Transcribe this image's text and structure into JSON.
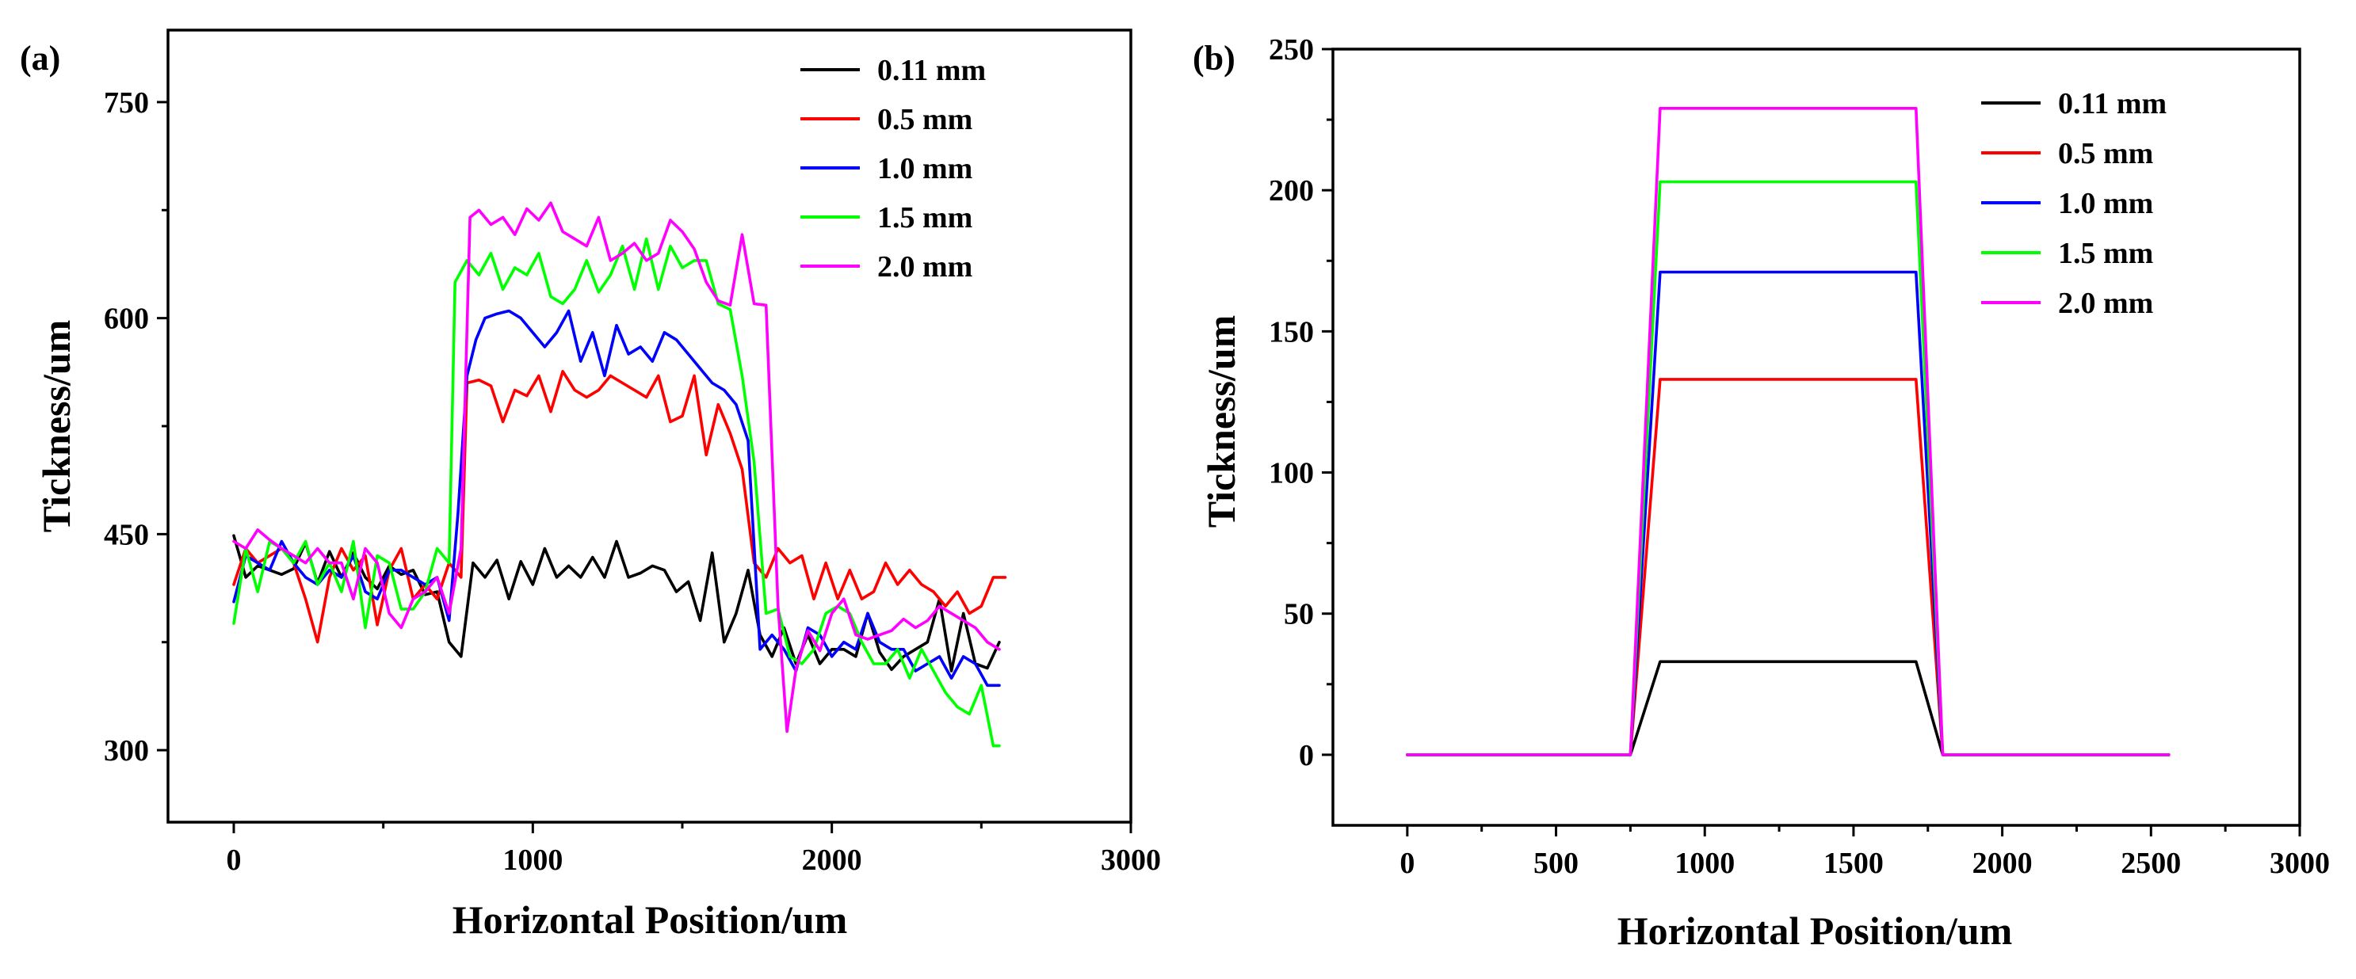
{
  "chart_data": [
    {
      "panel": "(a)",
      "type": "line",
      "xlabel": "Horizontal Position/um",
      "ylabel": "Tickness/um",
      "xlim": [
        -220,
        3000
      ],
      "ylim": [
        250,
        800
      ],
      "xticks": [
        0,
        1000,
        2000,
        3000
      ],
      "yticks": [
        300,
        450,
        600,
        750
      ],
      "xtick_labels": [
        "0",
        "1000",
        "2000",
        "3000"
      ],
      "ytick_labels": [
        "300",
        "450",
        "600",
        "750"
      ],
      "legend_position": "top-right",
      "series": [
        {
          "name": "0.11 mm",
          "color": "#000000",
          "x": [
            0,
            40,
            80,
            120,
            160,
            200,
            240,
            280,
            320,
            360,
            400,
            440,
            480,
            520,
            560,
            600,
            640,
            680,
            720,
            760,
            800,
            840,
            880,
            920,
            960,
            1000,
            1040,
            1080,
            1120,
            1160,
            1200,
            1240,
            1280,
            1320,
            1360,
            1400,
            1440,
            1480,
            1520,
            1560,
            1600,
            1640,
            1680,
            1720,
            1760,
            1800,
            1840,
            1880,
            1920,
            1960,
            2000,
            2040,
            2080,
            2120,
            2160,
            2200,
            2240,
            2280,
            2320,
            2360,
            2400,
            2440,
            2480,
            2520,
            2560
          ],
          "y": [
            449,
            420,
            428,
            425,
            422,
            426,
            444,
            416,
            438,
            420,
            437,
            420,
            412,
            428,
            422,
            425,
            408,
            410,
            375,
            365,
            430,
            420,
            432,
            405,
            431,
            415,
            440,
            420,
            428,
            420,
            434,
            420,
            445,
            420,
            423,
            428,
            425,
            410,
            417,
            390,
            437,
            375,
            395,
            425,
            380,
            365,
            385,
            360,
            380,
            360,
            370,
            370,
            365,
            395,
            368,
            356,
            365,
            370,
            375,
            405,
            355,
            395,
            360,
            357,
            375
          ]
        },
        {
          "name": "0.5 mm",
          "color": "#ff0000",
          "x": [
            0,
            40,
            80,
            120,
            160,
            200,
            240,
            280,
            320,
            360,
            400,
            440,
            480,
            520,
            560,
            600,
            640,
            680,
            720,
            760,
            780,
            820,
            860,
            900,
            940,
            980,
            1020,
            1060,
            1100,
            1140,
            1180,
            1220,
            1260,
            1300,
            1340,
            1380,
            1420,
            1460,
            1500,
            1540,
            1580,
            1620,
            1660,
            1700,
            1740,
            1780,
            1820,
            1860,
            1900,
            1940,
            1980,
            2020,
            2060,
            2100,
            2140,
            2180,
            2220,
            2260,
            2300,
            2340,
            2380,
            2420,
            2460,
            2500,
            2540,
            2580
          ],
          "y": [
            415,
            440,
            430,
            435,
            440,
            430,
            405,
            375,
            420,
            440,
            425,
            435,
            387,
            425,
            440,
            405,
            415,
            405,
            430,
            420,
            555,
            557,
            553,
            528,
            550,
            546,
            560,
            535,
            563,
            550,
            545,
            550,
            560,
            555,
            550,
            545,
            560,
            528,
            532,
            560,
            505,
            540,
            520,
            495,
            430,
            420,
            440,
            430,
            435,
            405,
            430,
            405,
            425,
            405,
            410,
            430,
            415,
            425,
            415,
            410,
            400,
            410,
            395,
            400,
            420,
            420
          ]
        },
        {
          "name": "1.0 mm",
          "color": "#0000ff",
          "x": [
            0,
            40,
            80,
            120,
            160,
            200,
            240,
            280,
            320,
            360,
            400,
            440,
            480,
            520,
            560,
            600,
            640,
            680,
            720,
            750,
            780,
            810,
            840,
            880,
            920,
            960,
            1000,
            1040,
            1080,
            1120,
            1160,
            1200,
            1240,
            1280,
            1320,
            1360,
            1400,
            1440,
            1480,
            1520,
            1560,
            1600,
            1640,
            1680,
            1720,
            1760,
            1800,
            1840,
            1880,
            1920,
            1960,
            2000,
            2040,
            2080,
            2120,
            2160,
            2200,
            2240,
            2280,
            2320,
            2360,
            2400,
            2440,
            2480,
            2520,
            2560
          ],
          "y": [
            403,
            435,
            430,
            425,
            445,
            430,
            420,
            415,
            425,
            420,
            435,
            410,
            405,
            425,
            425,
            420,
            415,
            420,
            390,
            465,
            560,
            585,
            600,
            603,
            605,
            600,
            590,
            580,
            590,
            605,
            570,
            590,
            560,
            595,
            575,
            580,
            570,
            590,
            585,
            575,
            565,
            555,
            550,
            540,
            515,
            370,
            380,
            370,
            355,
            385,
            380,
            365,
            375,
            370,
            395,
            375,
            370,
            370,
            355,
            360,
            365,
            350,
            365,
            360,
            345,
            345
          ]
        },
        {
          "name": "1.5 mm",
          "color": "#00ff00",
          "x": [
            0,
            40,
            80,
            120,
            160,
            200,
            240,
            280,
            320,
            360,
            400,
            440,
            480,
            520,
            560,
            600,
            640,
            680,
            720,
            740,
            780,
            820,
            860,
            900,
            940,
            980,
            1020,
            1060,
            1100,
            1140,
            1180,
            1220,
            1260,
            1300,
            1340,
            1380,
            1420,
            1460,
            1500,
            1540,
            1580,
            1620,
            1660,
            1700,
            1740,
            1780,
            1820,
            1860,
            1900,
            1940,
            1980,
            2020,
            2060,
            2100,
            2140,
            2180,
            2220,
            2260,
            2300,
            2340,
            2380,
            2420,
            2460,
            2500,
            2540,
            2560
          ],
          "y": [
            388,
            440,
            410,
            445,
            440,
            430,
            445,
            415,
            430,
            410,
            445,
            385,
            435,
            430,
            398,
            398,
            410,
            440,
            430,
            625,
            640,
            630,
            645,
            620,
            635,
            630,
            645,
            615,
            610,
            620,
            640,
            618,
            630,
            650,
            620,
            655,
            620,
            650,
            635,
            640,
            640,
            610,
            606,
            560,
            500,
            395,
            398,
            365,
            360,
            370,
            395,
            400,
            395,
            375,
            360,
            360,
            370,
            350,
            370,
            355,
            340,
            330,
            325,
            345,
            303,
            303
          ]
        },
        {
          "name": "2.0 mm",
          "color": "#ff00ff",
          "x": [
            0,
            40,
            80,
            120,
            160,
            200,
            240,
            280,
            320,
            360,
            400,
            440,
            480,
            520,
            560,
            600,
            640,
            680,
            720,
            760,
            790,
            820,
            860,
            900,
            940,
            980,
            1020,
            1060,
            1100,
            1140,
            1180,
            1220,
            1260,
            1300,
            1340,
            1380,
            1420,
            1460,
            1500,
            1540,
            1580,
            1620,
            1660,
            1700,
            1740,
            1780,
            1820,
            1850,
            1880,
            1920,
            1960,
            2000,
            2040,
            2080,
            2120,
            2160,
            2200,
            2240,
            2280,
            2320,
            2360,
            2400,
            2440,
            2480,
            2520,
            2560
          ],
          "y": [
            445,
            440,
            453,
            446,
            440,
            435,
            430,
            440,
            430,
            430,
            405,
            440,
            430,
            395,
            385,
            405,
            410,
            420,
            395,
            440,
            670,
            675,
            665,
            670,
            658,
            676,
            668,
            680,
            660,
            655,
            650,
            670,
            640,
            645,
            652,
            640,
            645,
            668,
            660,
            648,
            625,
            612,
            609,
            658,
            610,
            609,
            400,
            313,
            356,
            383,
            369,
            395,
            405,
            380,
            377,
            380,
            383,
            391,
            385,
            390,
            400,
            395,
            390,
            385,
            375,
            370
          ]
        }
      ]
    },
    {
      "panel": "(b)",
      "type": "line",
      "xlabel": "Horizontal Position/um",
      "ylabel": "Tickness/um",
      "xlim": [
        -250,
        3000
      ],
      "ylim": [
        -25,
        250
      ],
      "xticks": [
        0,
        500,
        1000,
        1500,
        2000,
        2500,
        3000
      ],
      "yticks": [
        0,
        50,
        100,
        150,
        200,
        250
      ],
      "xtick_labels": [
        "0",
        "500",
        "1000",
        "1500",
        "2000",
        "2500",
        "3000"
      ],
      "ytick_labels": [
        "0",
        "50",
        "100",
        "150",
        "200",
        "250"
      ],
      "legend_position": "top-right",
      "series": [
        {
          "name": "0.11 mm",
          "color": "#000000",
          "x": [
            0,
            750,
            850,
            1710,
            1800,
            2560
          ],
          "y": [
            0,
            0,
            33,
            33,
            0,
            0
          ]
        },
        {
          "name": "0.5 mm",
          "color": "#ff0000",
          "x": [
            0,
            750,
            850,
            1710,
            1800,
            2560
          ],
          "y": [
            0,
            0,
            133,
            133,
            0,
            0
          ]
        },
        {
          "name": "1.0 mm",
          "color": "#0000ff",
          "x": [
            0,
            750,
            850,
            1710,
            1800,
            2560
          ],
          "y": [
            0,
            0,
            171,
            171,
            0,
            0
          ]
        },
        {
          "name": "1.5 mm",
          "color": "#00ff00",
          "x": [
            0,
            750,
            850,
            1710,
            1800,
            2560
          ],
          "y": [
            0,
            0,
            203,
            203,
            0,
            0
          ]
        },
        {
          "name": "2.0 mm",
          "color": "#ff00ff",
          "x": [
            0,
            750,
            850,
            1710,
            1800,
            2560
          ],
          "y": [
            0,
            0,
            229,
            229,
            0,
            0
          ]
        }
      ]
    }
  ]
}
